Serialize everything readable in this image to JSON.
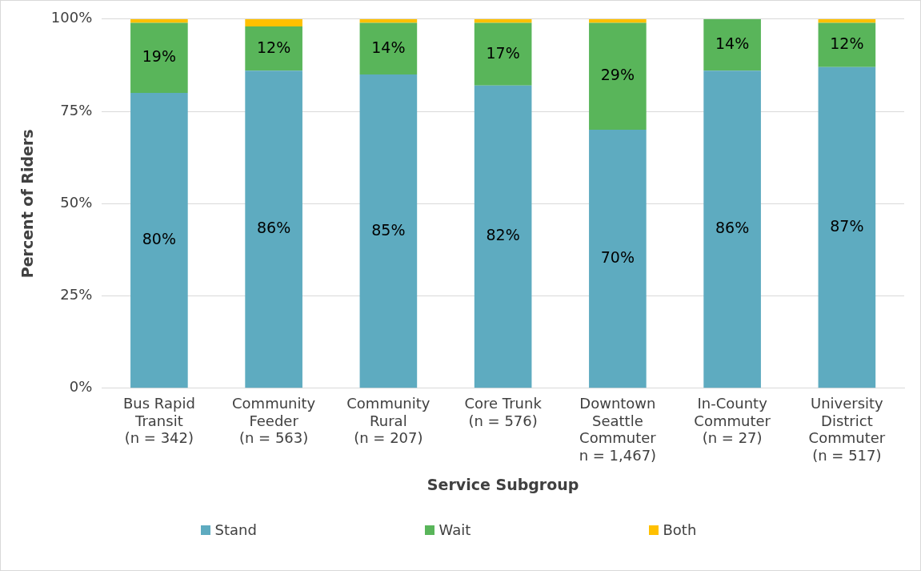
{
  "chart_data": {
    "type": "bar",
    "stacked": true,
    "xlabel": "Service Subgroup",
    "ylabel": "Percent of Riders",
    "categories": [
      "Bus Rapid\nTransit\n(n = 342)",
      "Community\nFeeder\n(n = 563)",
      "Community\nRural\n(n = 207)",
      "Core Trunk\n(n = 576)",
      "Downtown\nSeattle\nCommuter\nn = 1,467)",
      "In-County\nCommuter\n(n = 27)",
      "University\nDistrict\nCommuter\n(n = 517)"
    ],
    "series": [
      {
        "name": "Stand",
        "color": "#5eabc0",
        "values": [
          80,
          86,
          85,
          82,
          70,
          86,
          87
        ],
        "value_labels": [
          "80%",
          "86%",
          "85%",
          "82%",
          "70%",
          "86%",
          "87%"
        ]
      },
      {
        "name": "Wait",
        "color": "#59b55a",
        "values": [
          19,
          12,
          14,
          17,
          29,
          14,
          12
        ],
        "value_labels": [
          "19%",
          "12%",
          "14%",
          "17%",
          "29%",
          "14%",
          "12%"
        ]
      },
      {
        "name": "Both",
        "color": "#ffc000",
        "values": [
          1,
          2,
          1,
          1,
          1,
          0,
          1
        ]
      }
    ],
    "ylim": [
      0,
      100
    ],
    "yticks": [
      {
        "value": 0,
        "label": "0%"
      },
      {
        "value": 25,
        "label": "25%"
      },
      {
        "value": 50,
        "label": "50%"
      },
      {
        "value": 75,
        "label": "75%"
      },
      {
        "value": 100,
        "label": "100%"
      }
    ],
    "grid": "y",
    "legend": "bottom"
  }
}
